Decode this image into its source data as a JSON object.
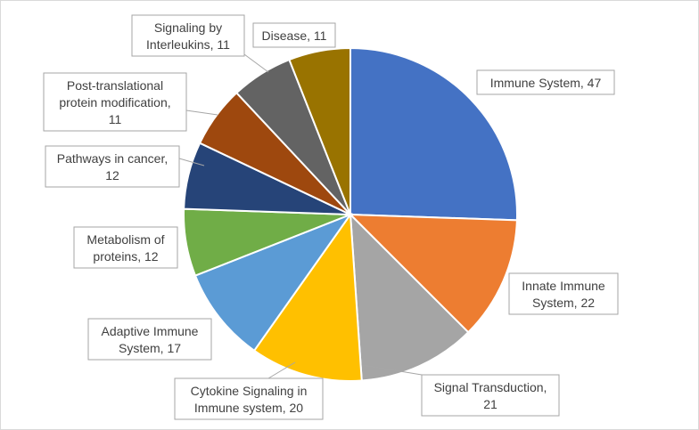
{
  "chart_data": {
    "type": "pie",
    "title": "",
    "start_angle_deg": 0,
    "direction": "clockwise",
    "slices": [
      {
        "label": "Immune System",
        "value": 47,
        "color": "#4472C4",
        "label_lines": [
          "Immune System, 47"
        ]
      },
      {
        "label": "Innate Immune System",
        "value": 22,
        "color": "#ED7D31",
        "label_lines": [
          "Innate Immune",
          "System, 22"
        ]
      },
      {
        "label": "Signal Transduction",
        "value": 21,
        "color": "#A5A5A5",
        "label_lines": [
          "Signal Transduction,",
          "21"
        ]
      },
      {
        "label": "Cytokine Signaling in Immune system",
        "value": 20,
        "color": "#FFC000",
        "label_lines": [
          "Cytokine Signaling in",
          "Immune system, 20"
        ]
      },
      {
        "label": "Adaptive Immune System",
        "value": 17,
        "color": "#5B9BD5",
        "label_lines": [
          "Adaptive Immune",
          "System, 17"
        ]
      },
      {
        "label": "Metabolism of proteins",
        "value": 12,
        "color": "#70AD47",
        "label_lines": [
          "Metabolism of",
          "proteins, 12"
        ]
      },
      {
        "label": "Pathways in cancer",
        "value": 12,
        "color": "#264478",
        "label_lines": [
          "Pathways in cancer,",
          "12"
        ]
      },
      {
        "label": "Post-translational protein modification",
        "value": 11,
        "color": "#9E480E",
        "label_lines": [
          "Post-translational",
          "protein modification,",
          "11"
        ]
      },
      {
        "label": "Signaling by Interleukins",
        "value": 11,
        "color": "#636363",
        "label_lines": [
          "Signaling by",
          "Interleukins, 11"
        ]
      },
      {
        "label": "Disease",
        "value": 11,
        "color": "#997300",
        "label_lines": [
          "Disease, 11"
        ]
      }
    ]
  }
}
